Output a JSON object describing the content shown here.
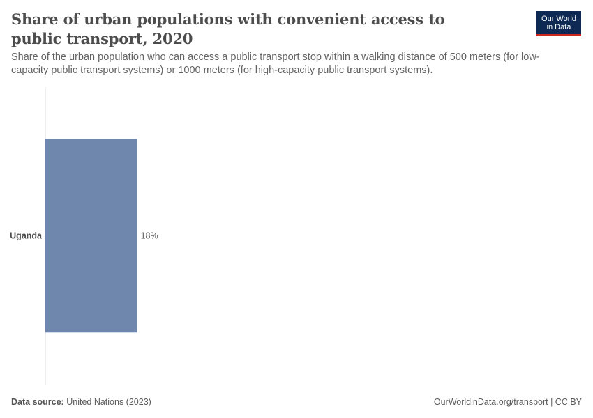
{
  "title": "Share of urban populations with convenient access to public transport, 2020",
  "subtitle": "Share of the urban population who can access a public transport stop within a walking distance of 500 meters (for low-capacity public transport systems) or 1000 meters (for high-capacity public transport systems).",
  "logo": {
    "line1": "Our World",
    "line2": "in Data"
  },
  "footer": {
    "source_label": "Data source:",
    "source_value": "United Nations (2023)",
    "url_license": "OurWorldinData.org/transport | CC BY"
  },
  "colors": {
    "bar": "#6f87ad",
    "axis": "#dddddd",
    "logo_bg": "#0e2a54",
    "logo_accent": "#ce261e"
  },
  "chart_data": {
    "type": "bar",
    "orientation": "horizontal",
    "categories": [
      "Uganda"
    ],
    "values": [
      18
    ],
    "value_labels": [
      "18%"
    ],
    "unit": "%",
    "xlim": [
      0,
      100
    ],
    "grid": false,
    "legend": "none"
  }
}
